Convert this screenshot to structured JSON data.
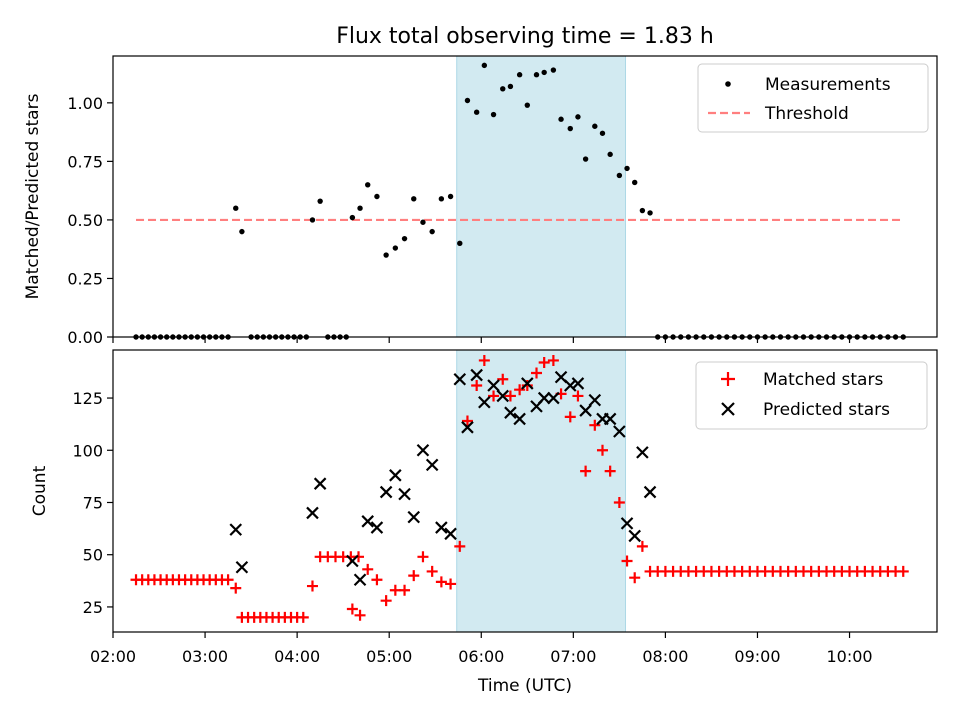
{
  "title": "Flux total observing time = 1.83 h",
  "xlabel": "Time (UTC)",
  "x_ticks": [
    "02:00",
    "03:00",
    "04:00",
    "05:00",
    "06:00",
    "07:00",
    "08:00",
    "09:00",
    "10:00"
  ],
  "colors": {
    "threshold": "#ff7f7f",
    "highlight": "#add8e6",
    "matched": "#ff0000",
    "predicted": "#000000",
    "measurement": "#000000"
  },
  "highlight_span": {
    "start": "05:44",
    "end": "07:34"
  },
  "chart_data": [
    {
      "type": "scatter",
      "ylabel": "Matched/Predicted stars",
      "ylim": [
        0,
        1.2
      ],
      "y_ticks": [
        "0.00",
        "0.25",
        "0.50",
        "0.75",
        "1.00"
      ],
      "legend": [
        "Measurements",
        "Threshold"
      ],
      "legend_loc": "upper right",
      "threshold": {
        "name": "Threshold",
        "value": 0.5,
        "x_start": "02:15",
        "x_end": "10:35"
      },
      "series": [
        {
          "name": "Measurements",
          "points": [
            [
              "02:15",
              0
            ],
            [
              "02:19",
              0
            ],
            [
              "02:23",
              0
            ],
            [
              "02:27",
              0
            ],
            [
              "02:31",
              0
            ],
            [
              "02:35",
              0
            ],
            [
              "02:39",
              0
            ],
            [
              "02:43",
              0
            ],
            [
              "02:47",
              0
            ],
            [
              "02:51",
              0
            ],
            [
              "02:55",
              0
            ],
            [
              "02:59",
              0
            ],
            [
              "03:03",
              0
            ],
            [
              "03:07",
              0
            ],
            [
              "03:11",
              0
            ],
            [
              "03:15",
              0
            ],
            [
              "03:20",
              0.55
            ],
            [
              "03:24",
              0.45
            ],
            [
              "03:30",
              0
            ],
            [
              "03:34",
              0
            ],
            [
              "03:38",
              0
            ],
            [
              "03:42",
              0
            ],
            [
              "03:46",
              0
            ],
            [
              "03:50",
              0
            ],
            [
              "03:54",
              0
            ],
            [
              "03:58",
              0
            ],
            [
              "04:02",
              0
            ],
            [
              "04:06",
              0
            ],
            [
              "04:10",
              0.5
            ],
            [
              "04:15",
              0.58
            ],
            [
              "04:20",
              0
            ],
            [
              "04:24",
              0
            ],
            [
              "04:28",
              0
            ],
            [
              "04:32",
              0
            ],
            [
              "04:36",
              0.51
            ],
            [
              "04:41",
              0.55
            ],
            [
              "04:46",
              0.65
            ],
            [
              "04:52",
              0.6
            ],
            [
              "04:58",
              0.35
            ],
            [
              "05:04",
              0.38
            ],
            [
              "05:10",
              0.42
            ],
            [
              "05:16",
              0.59
            ],
            [
              "05:22",
              0.49
            ],
            [
              "05:28",
              0.45
            ],
            [
              "05:34",
              0.59
            ],
            [
              "05:40",
              0.6
            ],
            [
              "05:46",
              0.4
            ],
            [
              "05:51",
              1.01
            ],
            [
              "05:57",
              0.96
            ],
            [
              "06:02",
              1.16
            ],
            [
              "06:08",
              0.95
            ],
            [
              "06:14",
              1.06
            ],
            [
              "06:19",
              1.07
            ],
            [
              "06:25",
              1.12
            ],
            [
              "06:30",
              0.99
            ],
            [
              "06:36",
              1.12
            ],
            [
              "06:41",
              1.13
            ],
            [
              "06:47",
              1.14
            ],
            [
              "06:52",
              0.93
            ],
            [
              "06:58",
              0.89
            ],
            [
              "07:03",
              0.94
            ],
            [
              "07:08",
              0.76
            ],
            [
              "07:14",
              0.9
            ],
            [
              "07:19",
              0.87
            ],
            [
              "07:24",
              0.78
            ],
            [
              "07:30",
              0.69
            ],
            [
              "07:35",
              0.72
            ],
            [
              "07:40",
              0.66
            ],
            [
              "07:45",
              0.54
            ],
            [
              "07:50",
              0.53
            ],
            [
              "07:55",
              0
            ],
            [
              "08:00",
              0
            ],
            [
              "08:05",
              0
            ],
            [
              "08:10",
              0
            ],
            [
              "08:15",
              0
            ],
            [
              "08:20",
              0
            ],
            [
              "08:25",
              0
            ],
            [
              "08:30",
              0
            ],
            [
              "08:35",
              0
            ],
            [
              "08:40",
              0
            ],
            [
              "08:45",
              0
            ],
            [
              "08:50",
              0
            ],
            [
              "08:55",
              0
            ],
            [
              "09:00",
              0
            ],
            [
              "09:05",
              0
            ],
            [
              "09:10",
              0
            ],
            [
              "09:15",
              0
            ],
            [
              "09:20",
              0
            ],
            [
              "09:25",
              0
            ],
            [
              "09:30",
              0
            ],
            [
              "09:35",
              0
            ],
            [
              "09:40",
              0
            ],
            [
              "09:45",
              0
            ],
            [
              "09:50",
              0
            ],
            [
              "09:55",
              0
            ],
            [
              "10:00",
              0
            ],
            [
              "10:05",
              0
            ],
            [
              "10:10",
              0
            ],
            [
              "10:15",
              0
            ],
            [
              "10:20",
              0
            ],
            [
              "10:25",
              0
            ],
            [
              "10:30",
              0
            ],
            [
              "10:35",
              0
            ]
          ]
        }
      ]
    },
    {
      "type": "scatter",
      "ylabel": "Count",
      "ylim": [
        13,
        148
      ],
      "y_ticks": [
        "25",
        "50",
        "75",
        "100",
        "125"
      ],
      "legend": [
        "Matched stars",
        "Predicted stars"
      ],
      "legend_loc": "upper right",
      "series": [
        {
          "name": "Matched stars",
          "marker": "+",
          "points": [
            [
              "02:15",
              38
            ],
            [
              "02:19",
              38
            ],
            [
              "02:23",
              38
            ],
            [
              "02:27",
              38
            ],
            [
              "02:31",
              38
            ],
            [
              "02:35",
              38
            ],
            [
              "02:39",
              38
            ],
            [
              "02:43",
              38
            ],
            [
              "02:47",
              38
            ],
            [
              "02:51",
              38
            ],
            [
              "02:55",
              38
            ],
            [
              "02:59",
              38
            ],
            [
              "03:03",
              38
            ],
            [
              "03:07",
              38
            ],
            [
              "03:11",
              38
            ],
            [
              "03:15",
              38
            ],
            [
              "03:20",
              34
            ],
            [
              "03:24",
              20
            ],
            [
              "03:28",
              20
            ],
            [
              "03:32",
              20
            ],
            [
              "03:36",
              20
            ],
            [
              "03:40",
              20
            ],
            [
              "03:44",
              20
            ],
            [
              "03:48",
              20
            ],
            [
              "03:52",
              20
            ],
            [
              "03:56",
              20
            ],
            [
              "04:00",
              20
            ],
            [
              "04:04",
              20
            ],
            [
              "04:10",
              35
            ],
            [
              "04:15",
              49
            ],
            [
              "04:20",
              49
            ],
            [
              "04:25",
              49
            ],
            [
              "04:30",
              49
            ],
            [
              "04:35",
              49
            ],
            [
              "04:40",
              49
            ],
            [
              "04:36",
              24
            ],
            [
              "04:41",
              21
            ],
            [
              "04:46",
              43
            ],
            [
              "04:52",
              38
            ],
            [
              "04:58",
              28
            ],
            [
              "05:04",
              33
            ],
            [
              "05:10",
              33
            ],
            [
              "05:16",
              40
            ],
            [
              "05:22",
              49
            ],
            [
              "05:28",
              42
            ],
            [
              "05:34",
              37
            ],
            [
              "05:40",
              36
            ],
            [
              "05:46",
              54
            ],
            [
              "05:51",
              114
            ],
            [
              "05:57",
              131
            ],
            [
              "06:02",
              143
            ],
            [
              "06:08",
              126
            ],
            [
              "06:14",
              134
            ],
            [
              "06:19",
              126
            ],
            [
              "06:25",
              129
            ],
            [
              "06:30",
              131
            ],
            [
              "06:36",
              137
            ],
            [
              "06:41",
              142
            ],
            [
              "06:47",
              143
            ],
            [
              "06:52",
              127
            ],
            [
              "06:58",
              116
            ],
            [
              "07:03",
              126
            ],
            [
              "07:08",
              90
            ],
            [
              "07:14",
              112
            ],
            [
              "07:19",
              100
            ],
            [
              "07:24",
              90
            ],
            [
              "07:30",
              75
            ],
            [
              "07:35",
              47
            ],
            [
              "07:40",
              39
            ],
            [
              "07:45",
              54
            ],
            [
              "07:50",
              42
            ],
            [
              "07:55",
              42
            ],
            [
              "08:00",
              42
            ],
            [
              "08:05",
              42
            ],
            [
              "08:10",
              42
            ],
            [
              "08:15",
              42
            ],
            [
              "08:20",
              42
            ],
            [
              "08:25",
              42
            ],
            [
              "08:30",
              42
            ],
            [
              "08:35",
              42
            ],
            [
              "08:40",
              42
            ],
            [
              "08:45",
              42
            ],
            [
              "08:50",
              42
            ],
            [
              "08:55",
              42
            ],
            [
              "09:00",
              42
            ],
            [
              "09:05",
              42
            ],
            [
              "09:10",
              42
            ],
            [
              "09:15",
              42
            ],
            [
              "09:20",
              42
            ],
            [
              "09:25",
              42
            ],
            [
              "09:30",
              42
            ],
            [
              "09:35",
              42
            ],
            [
              "09:40",
              42
            ],
            [
              "09:45",
              42
            ],
            [
              "09:50",
              42
            ],
            [
              "09:55",
              42
            ],
            [
              "10:00",
              42
            ],
            [
              "10:05",
              42
            ],
            [
              "10:10",
              42
            ],
            [
              "10:15",
              42
            ],
            [
              "10:20",
              42
            ],
            [
              "10:25",
              42
            ],
            [
              "10:30",
              42
            ],
            [
              "10:35",
              42
            ]
          ]
        },
        {
          "name": "Predicted stars",
          "marker": "x",
          "points": [
            [
              "03:20",
              62
            ],
            [
              "03:24",
              44
            ],
            [
              "04:10",
              70
            ],
            [
              "04:15",
              84
            ],
            [
              "04:36",
              47
            ],
            [
              "04:41",
              38
            ],
            [
              "04:46",
              66
            ],
            [
              "04:52",
              63
            ],
            [
              "04:58",
              80
            ],
            [
              "05:04",
              88
            ],
            [
              "05:10",
              79
            ],
            [
              "05:16",
              68
            ],
            [
              "05:22",
              100
            ],
            [
              "05:28",
              93
            ],
            [
              "05:34",
              63
            ],
            [
              "05:40",
              60
            ],
            [
              "05:46",
              134
            ],
            [
              "05:51",
              111
            ],
            [
              "05:57",
              136
            ],
            [
              "06:02",
              123
            ],
            [
              "06:08",
              131
            ],
            [
              "06:14",
              126
            ],
            [
              "06:19",
              118
            ],
            [
              "06:25",
              115
            ],
            [
              "06:30",
              132
            ],
            [
              "06:36",
              121
            ],
            [
              "06:41",
              125
            ],
            [
              "06:47",
              125
            ],
            [
              "06:52",
              135
            ],
            [
              "06:58",
              131
            ],
            [
              "07:03",
              132
            ],
            [
              "07:08",
              119
            ],
            [
              "07:14",
              124
            ],
            [
              "07:19",
              115
            ],
            [
              "07:24",
              115
            ],
            [
              "07:30",
              109
            ],
            [
              "07:35",
              65
            ],
            [
              "07:40",
              59
            ],
            [
              "07:45",
              99
            ],
            [
              "07:50",
              80
            ]
          ]
        }
      ]
    }
  ]
}
